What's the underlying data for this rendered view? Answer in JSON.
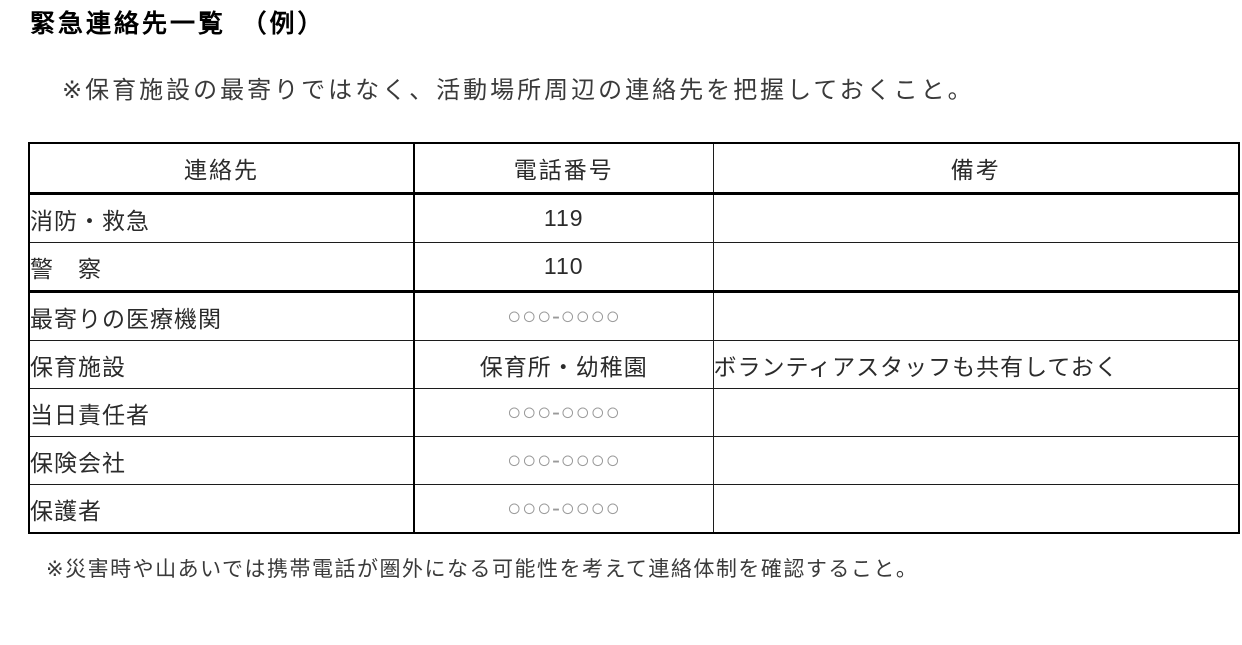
{
  "document": {
    "title": "緊急連絡先一覧　（例）",
    "top_note": "※保育施設の最寄りではなく、活動場所周辺の連絡先を把握しておくこと。",
    "bottom_note": "※災害時や山あいでは携帯電話が圏外になる可能性を考えて連絡体制を確認すること。"
  },
  "table": {
    "headers": {
      "contact": "連絡先",
      "phone": "電話番号",
      "remarks": "備考"
    },
    "rows": [
      {
        "contact": "消防・救急",
        "phone": "119",
        "remarks": ""
      },
      {
        "contact": "警　察",
        "phone": "110",
        "remarks": ""
      },
      {
        "contact": "最寄りの医療機関",
        "phone": "○○○-○○○○",
        "remarks": ""
      },
      {
        "contact": "保育施設",
        "phone": "保育所・幼稚園",
        "remarks": "ボランティアスタッフも共有しておく"
      },
      {
        "contact": "当日責任者",
        "phone": "○○○-○○○○",
        "remarks": ""
      },
      {
        "contact": "保険会社",
        "phone": "○○○-○○○○",
        "remarks": ""
      },
      {
        "contact": "保護者",
        "phone": "○○○-○○○○",
        "remarks": ""
      }
    ]
  },
  "colors": {
    "background": "#ffffff",
    "title_text": "#000000",
    "body_text": "#2b2b2b",
    "table_border": "#000000",
    "placeholder_phone": "#9a9a9a"
  }
}
